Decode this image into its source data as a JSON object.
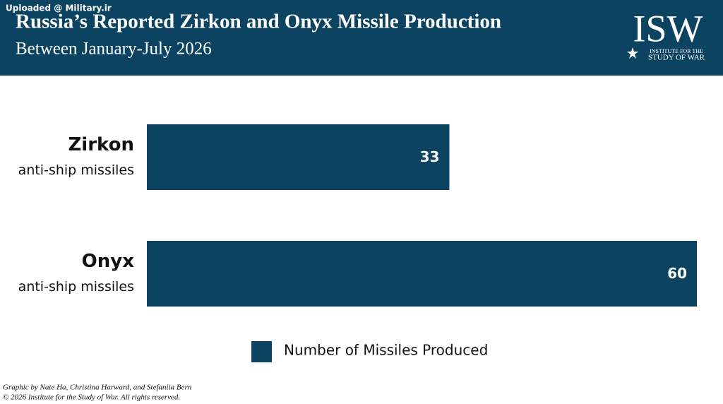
{
  "watermark": "Uploaded @ Military.ir",
  "logo": {
    "mark": "ISW",
    "line1": "INSTITUTE FOR THE",
    "line2": "STUDY OF WAR"
  },
  "chart_data": {
    "type": "bar",
    "orientation": "horizontal",
    "title": "Russia’s Reported Zirkon and Onyx Missile Production",
    "subtitle": "Between January-July 2026",
    "categories": [
      "Zirkon",
      "Onyx"
    ],
    "category_subtitles": [
      "anti-ship missiles",
      "anti-ship missiles"
    ],
    "series": [
      {
        "name": "Number of Missiles Produced",
        "color": "#0b4361",
        "values": [
          33,
          60
        ]
      }
    ],
    "footer": [
      "Graphic by Nate Ha, Christina Harward, and Stefaniia Bern",
      "© 2026 Institute for the Study of War. All rights reserved."
    ]
  }
}
